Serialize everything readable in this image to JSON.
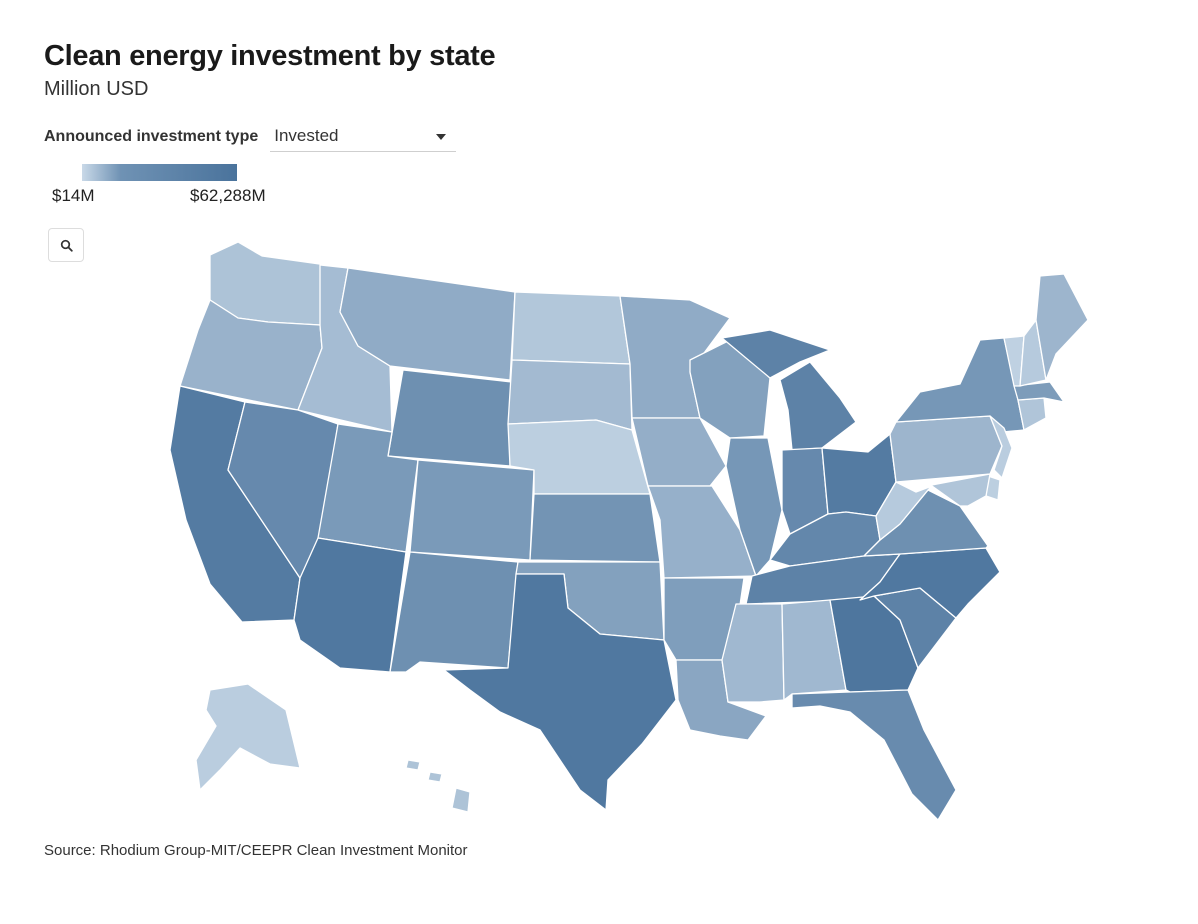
{
  "title": "Clean energy investment by state",
  "subtitle": "Million USD",
  "control": {
    "label": "Announced investment type",
    "value": "Invested"
  },
  "legend": {
    "min_label": "$14M",
    "max_label": "$62,288M",
    "color_min": "#c9d9e8",
    "color_max": "#4a739c"
  },
  "icons": {
    "zoom": "search-icon",
    "dropdown": "chevron-down-icon"
  },
  "source": "Source: Rhodium Group-MIT/CEEPR Clean Investment Monitor",
  "states": [
    {
      "id": "WA",
      "level": 0.22
    },
    {
      "id": "OR",
      "level": 0.38
    },
    {
      "id": "CA",
      "level": 0.92
    },
    {
      "id": "ID",
      "level": 0.28
    },
    {
      "id": "NV",
      "level": 0.78
    },
    {
      "id": "MT",
      "level": 0.45
    },
    {
      "id": "WY",
      "level": 0.72
    },
    {
      "id": "UT",
      "level": 0.62
    },
    {
      "id": "AZ",
      "level": 0.95
    },
    {
      "id": "CO",
      "level": 0.62
    },
    {
      "id": "NM",
      "level": 0.72
    },
    {
      "id": "ND",
      "level": 0.18
    },
    {
      "id": "SD",
      "level": 0.3
    },
    {
      "id": "NE",
      "level": 0.1
    },
    {
      "id": "KS",
      "level": 0.68
    },
    {
      "id": "OK",
      "level": 0.55
    },
    {
      "id": "TX",
      "level": 0.95
    },
    {
      "id": "MN",
      "level": 0.45
    },
    {
      "id": "IA",
      "level": 0.42
    },
    {
      "id": "MO",
      "level": 0.4
    },
    {
      "id": "AR",
      "level": 0.58
    },
    {
      "id": "LA",
      "level": 0.5
    },
    {
      "id": "WI",
      "level": 0.55
    },
    {
      "id": "IL",
      "level": 0.65
    },
    {
      "id": "MI",
      "level": 0.85
    },
    {
      "id": "IN",
      "level": 0.78
    },
    {
      "id": "OH",
      "level": 0.92
    },
    {
      "id": "KY",
      "level": 0.8
    },
    {
      "id": "TN",
      "level": 0.85
    },
    {
      "id": "MS",
      "level": 0.32
    },
    {
      "id": "AL",
      "level": 0.32
    },
    {
      "id": "GA",
      "level": 0.97
    },
    {
      "id": "FL",
      "level": 0.76
    },
    {
      "id": "SC",
      "level": 0.85
    },
    {
      "id": "NC",
      "level": 0.95
    },
    {
      "id": "VA",
      "level": 0.72
    },
    {
      "id": "WV",
      "level": 0.15
    },
    {
      "id": "PA",
      "level": 0.35
    },
    {
      "id": "NY",
      "level": 0.65
    },
    {
      "id": "ME",
      "level": 0.35
    },
    {
      "id": "NH",
      "level": 0.15
    },
    {
      "id": "VT",
      "level": 0.08
    },
    {
      "id": "MA",
      "level": 0.6
    },
    {
      "id": "CT",
      "level": 0.2
    },
    {
      "id": "NJ",
      "level": 0.12
    },
    {
      "id": "MD",
      "level": 0.2
    },
    {
      "id": "DE",
      "level": 0.1
    },
    {
      "id": "AK",
      "level": 0.12
    },
    {
      "id": "HI",
      "level": 0.22
    }
  ]
}
